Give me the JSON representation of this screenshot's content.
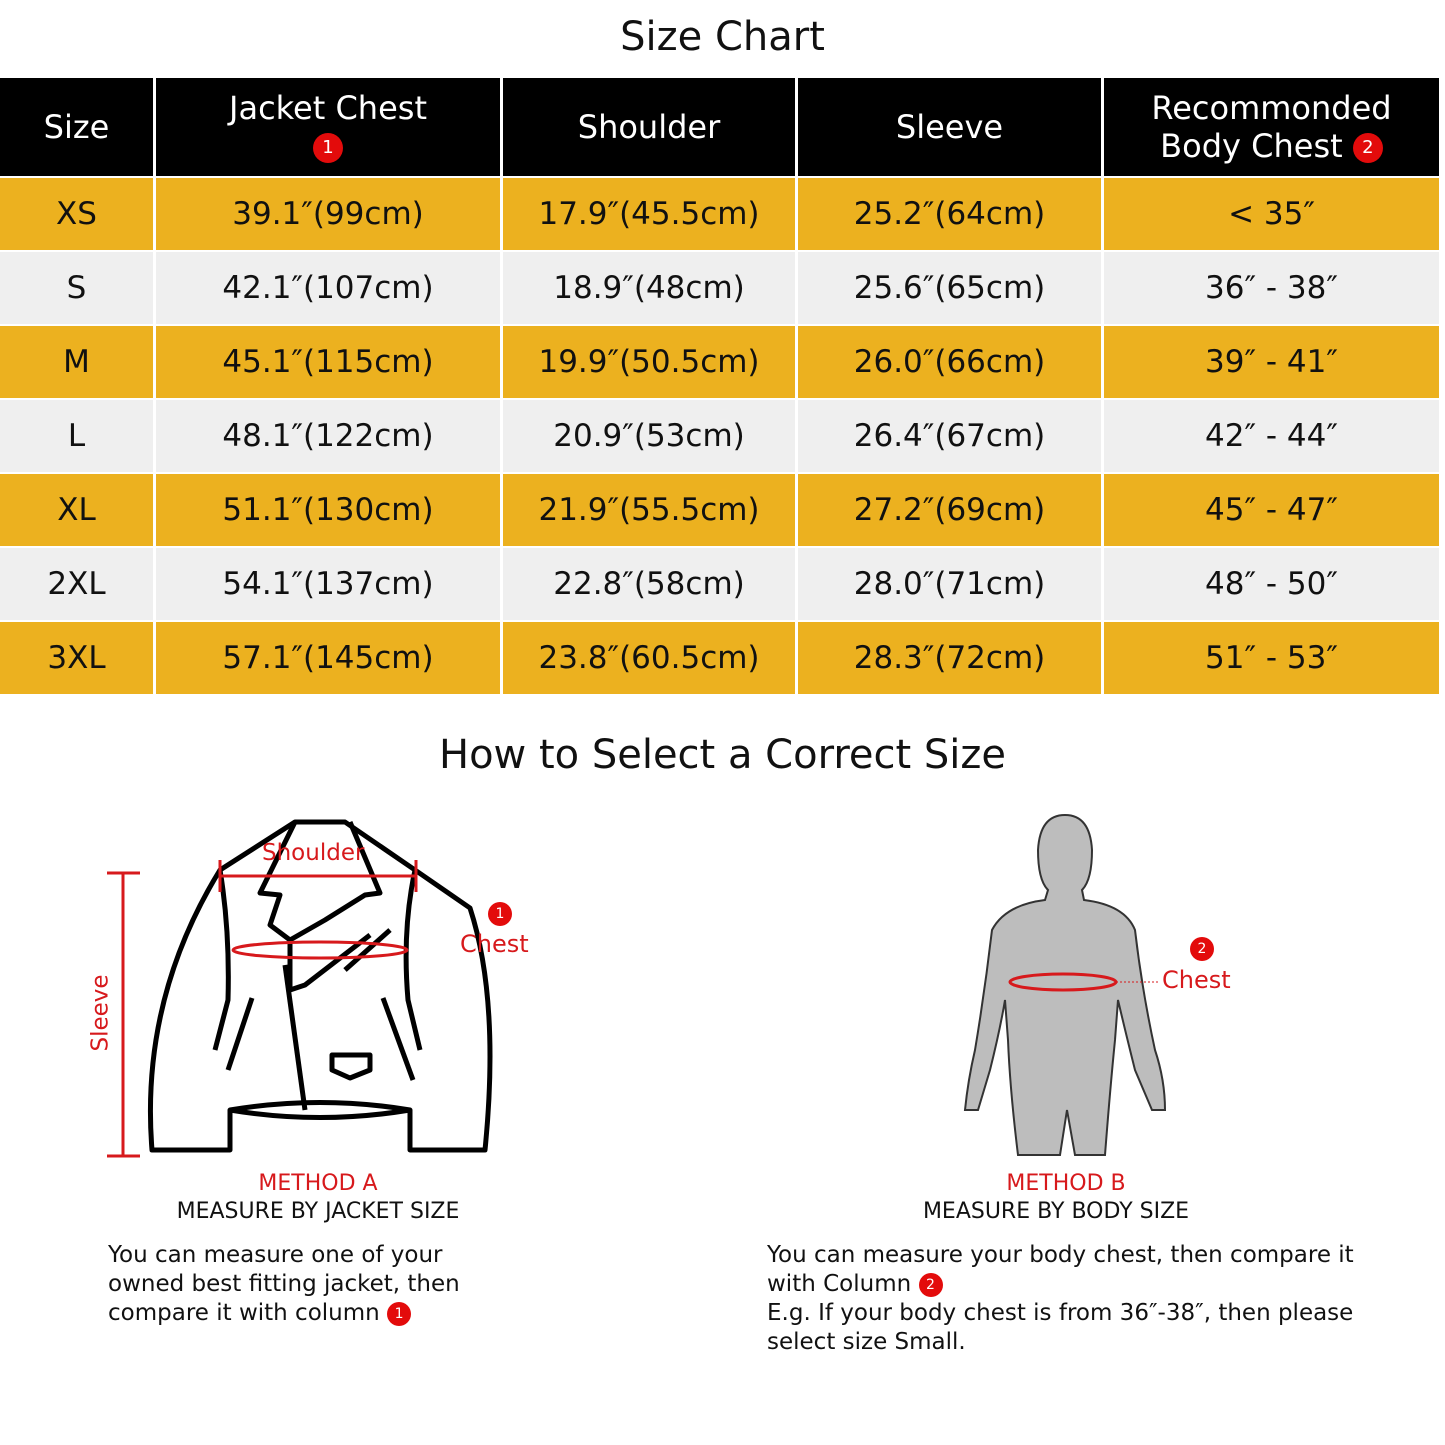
{
  "title": "Size Chart",
  "headers": [
    "Size",
    "Jacket Chest",
    "Shoulder",
    "Sleeve",
    "Recommonded Body Chest"
  ],
  "header_badges": {
    "jacket_chest": "1",
    "body_chest": "2"
  },
  "rows": [
    [
      "XS",
      "39.1″(99cm)",
      "17.9″(45.5cm)",
      "25.2″(64cm)",
      "< 35″"
    ],
    [
      "S",
      "42.1″(107cm)",
      "18.9″(48cm)",
      "25.6″(65cm)",
      "36″ - 38″"
    ],
    [
      "M",
      "45.1″(115cm)",
      "19.9″(50.5cm)",
      "26.0″(66cm)",
      "39″ - 41″"
    ],
    [
      "L",
      "48.1″(122cm)",
      "20.9″(53cm)",
      "26.4″(67cm)",
      "42″ - 44″"
    ],
    [
      "XL",
      "51.1″(130cm)",
      "21.9″(55.5cm)",
      "27.2″(69cm)",
      "45″ - 47″"
    ],
    [
      "2XL",
      "54.1″(137cm)",
      "22.8″(58cm)",
      "28.0″(71cm)",
      "48″ - 50″"
    ],
    [
      "3XL",
      "57.1″(145cm)",
      "23.8″(60.5cm)",
      "28.3″(72cm)",
      "51″ - 53″"
    ]
  ],
  "colors": {
    "header_bg": "#000000",
    "row_yellow": "#ecb11f",
    "row_grey": "#efefef",
    "accent_red": "#d7191c"
  },
  "howto": {
    "title": "How to Select a Correct Size",
    "method_a": {
      "labels": {
        "shoulder": "Shoulder",
        "chest": "Chest",
        "sleeve": "Sleeve",
        "badge": "1"
      },
      "heading": "METHOD A",
      "subheading": "MEASURE BY JACKET SIZE",
      "text": "You can measure one of your owned best fitting jacket, then compare it with column"
    },
    "method_b": {
      "labels": {
        "chest": "Chest",
        "badge": "2"
      },
      "heading": "METHOD B",
      "subheading": "MEASURE BY BODY SIZE",
      "text1": "You can measure your body chest, then compare it with Column",
      "text2": "E.g. If your body chest is from 36″-38″, then please select size Small."
    }
  }
}
